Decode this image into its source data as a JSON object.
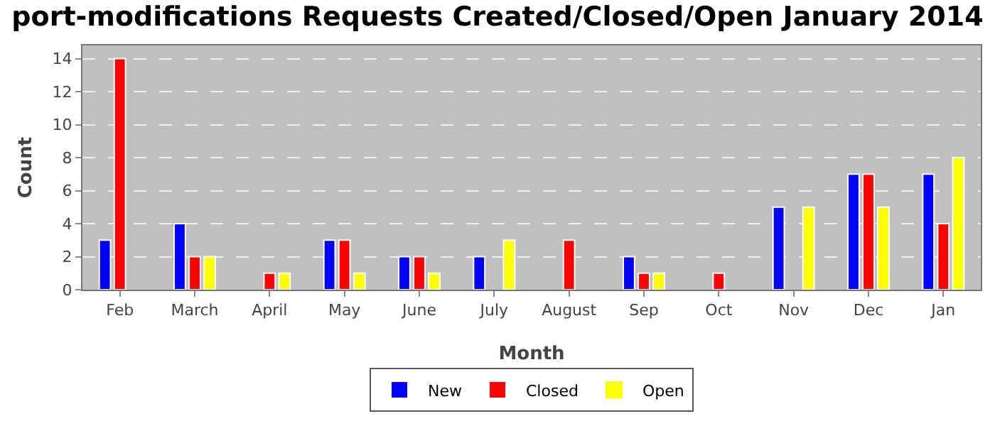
{
  "chart_data": {
    "type": "bar",
    "title": "port-modifications Requests Created/Closed/Open January 2014",
    "xlabel": "Month",
    "ylabel": "Count",
    "categories": [
      "Feb",
      "March",
      "April",
      "May",
      "June",
      "July",
      "August",
      "Sep",
      "Oct",
      "Nov",
      "Dec",
      "Jan"
    ],
    "series": [
      {
        "name": "New",
        "color": "#0000ff",
        "values": [
          3,
          4,
          0,
          3,
          2,
          2,
          0,
          2,
          0,
          5,
          7,
          7
        ]
      },
      {
        "name": "Closed",
        "color": "#ff0000",
        "values": [
          14,
          2,
          1,
          3,
          2,
          0,
          3,
          1,
          1,
          0,
          7,
          4
        ]
      },
      {
        "name": "Open",
        "color": "#ffff00",
        "values": [
          0,
          2,
          1,
          1,
          1,
          3,
          0,
          1,
          0,
          5,
          5,
          8
        ]
      }
    ],
    "ylim": [
      0,
      14.8
    ],
    "yticks": [
      0,
      2,
      4,
      6,
      8,
      10,
      12,
      14
    ],
    "grid": "y",
    "legend": "bottom"
  }
}
